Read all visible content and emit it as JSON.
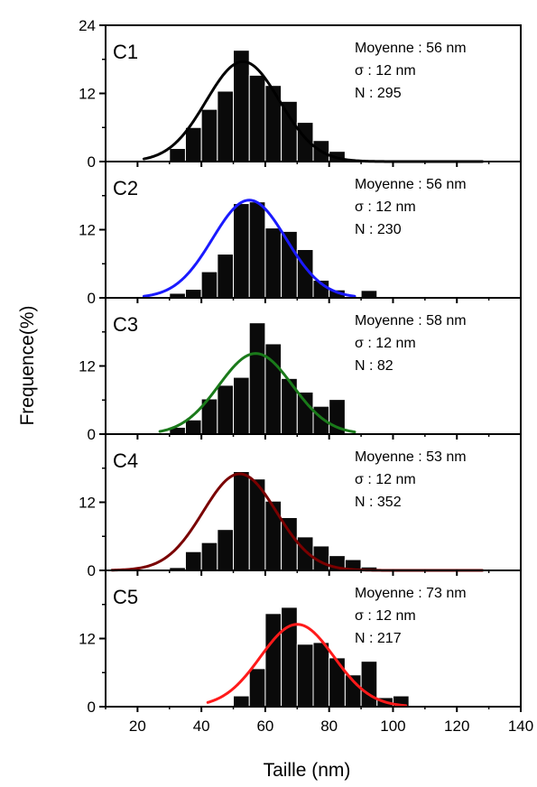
{
  "chart_data": {
    "type": "bar",
    "xlabel": "Taille (nm)",
    "ylabel": "Frequence(%)",
    "xlim": [
      10,
      140
    ],
    "xticks": [
      20,
      40,
      60,
      80,
      100,
      120,
      140
    ],
    "ylim": [
      0,
      24
    ],
    "yticks": [
      0,
      12,
      24
    ],
    "bin_width": 5,
    "panels": [
      {
        "label": "C1",
        "stats": {
          "mean": "Moyenne : 56 nm",
          "sigma": "σ : 12 nm",
          "n": "N : 295"
        },
        "fit_color": "#000000",
        "fit": {
          "mu": 53,
          "sigma": 11.5,
          "amp": 17.6,
          "x_min": 22,
          "x_max": 128
        },
        "bins": [
          [
            30,
            2.3
          ],
          [
            35,
            6.0
          ],
          [
            40,
            9.2
          ],
          [
            45,
            12.4
          ],
          [
            50,
            19.6
          ],
          [
            55,
            15.2
          ],
          [
            60,
            13.4
          ],
          [
            65,
            10.6
          ],
          [
            70,
            6.9
          ],
          [
            75,
            3.7
          ],
          [
            80,
            1.8
          ]
        ]
      },
      {
        "label": "C2",
        "stats": {
          "mean": "Moyenne : 56 nm",
          "sigma": "σ : 12 nm",
          "n": "N : 230"
        },
        "fit_color": "#1a1aff",
        "fit": {
          "mu": 55,
          "sigma": 11.5,
          "amp": 17.2,
          "x_min": 22,
          "x_max": 88
        },
        "bins": [
          [
            30,
            0.8
          ],
          [
            35,
            1.5
          ],
          [
            40,
            4.6
          ],
          [
            45,
            7.7
          ],
          [
            50,
            16.6
          ],
          [
            55,
            16.9
          ],
          [
            60,
            12.3
          ],
          [
            65,
            11.7
          ],
          [
            70,
            8.5
          ],
          [
            75,
            3.1
          ],
          [
            80,
            1.4
          ],
          [
            90,
            1.3
          ]
        ]
      },
      {
        "label": "C3",
        "stats": {
          "mean": "Moyenne : 58 nm",
          "sigma": "σ : 12 nm",
          "n": "N : 82"
        },
        "fit_color": "#1a7a1a",
        "fit": {
          "mu": 57,
          "sigma": 11.5,
          "amp": 14.2,
          "x_min": 27,
          "x_max": 88
        },
        "bins": [
          [
            30,
            1.2
          ],
          [
            35,
            2.5
          ],
          [
            40,
            6.2
          ],
          [
            45,
            8.6
          ],
          [
            50,
            10.0
          ],
          [
            55,
            19.6
          ],
          [
            60,
            15.9
          ],
          [
            65,
            9.8
          ],
          [
            70,
            7.4
          ],
          [
            75,
            4.9
          ],
          [
            80,
            6.1
          ]
        ]
      },
      {
        "label": "C4",
        "stats": {
          "mean": "Moyenne : 53 nm",
          "sigma": "σ : 12 nm",
          "n": "N : 352"
        },
        "fit_color": "#7a0000",
        "fit": {
          "mu": 52,
          "sigma": 11.5,
          "amp": 17.0,
          "x_min": 12,
          "x_max": 128
        },
        "bins": [
          [
            30,
            0.5
          ],
          [
            35,
            3.3
          ],
          [
            40,
            4.9
          ],
          [
            45,
            7.2
          ],
          [
            50,
            17.4
          ],
          [
            55,
            16.1
          ],
          [
            60,
            12.2
          ],
          [
            65,
            9.3
          ],
          [
            70,
            5.9
          ],
          [
            75,
            4.3
          ],
          [
            80,
            2.6
          ],
          [
            85,
            1.9
          ],
          [
            90,
            0.6
          ]
        ]
      },
      {
        "label": "C5",
        "stats": {
          "mean": "Moyenne : 73 nm",
          "sigma": "σ : 12 nm",
          "n": "N : 217"
        },
        "fit_color": "#ff1a1a",
        "fit": {
          "mu": 70,
          "sigma": 11.5,
          "amp": 14.5,
          "x_min": 42,
          "x_max": 104
        },
        "bins": [
          [
            50,
            1.9
          ],
          [
            55,
            6.7
          ],
          [
            60,
            16.4
          ],
          [
            65,
            17.5
          ],
          [
            70,
            11.0
          ],
          [
            75,
            11.3
          ],
          [
            80,
            8.6
          ],
          [
            85,
            5.6
          ],
          [
            90,
            8.0
          ],
          [
            95,
            1.6
          ],
          [
            100,
            1.9
          ]
        ]
      }
    ]
  }
}
